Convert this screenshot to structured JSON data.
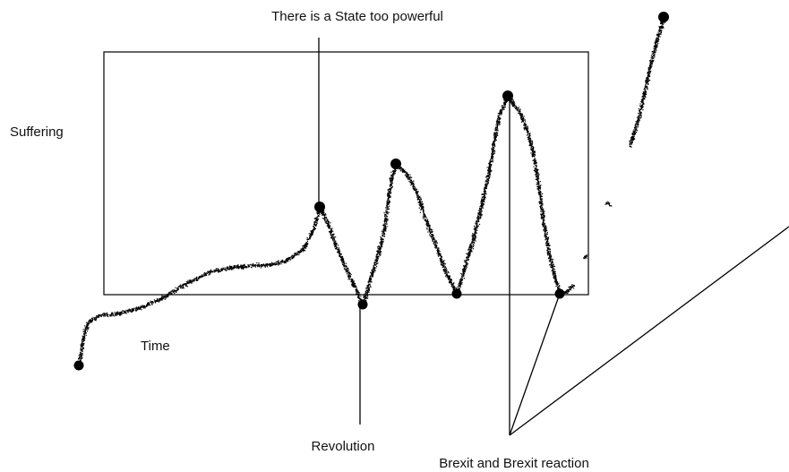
{
  "labels": {
    "suffering": "Suffering",
    "time": "Time",
    "state_too_powerful": "There is a State too powerful",
    "revolution": "Revolution",
    "brexit": "Brexit and Brexit reaction"
  },
  "colors": {
    "background": "#ffffff",
    "ink": "#000000"
  }
}
